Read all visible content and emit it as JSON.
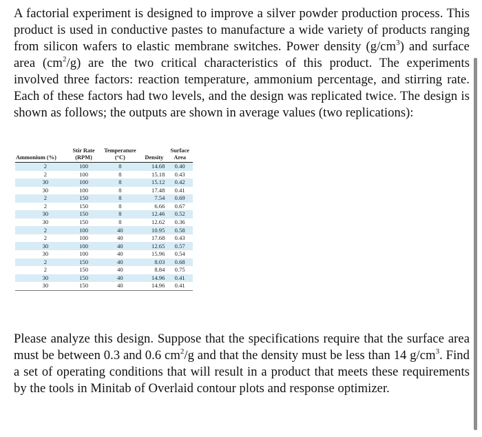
{
  "intro": {
    "before_cm3": "A factorial experiment is designed to improve a silver powder production process. This product is used in conductive pastes to manufacture a wide variety of products ranging from silicon wafers to elastic membrane switches. Power density (g/cm",
    "exp3": "3",
    "between": ") and surface area (cm",
    "exp2": "2",
    "after_cm2": "/g) are the two critical characteristics of this product. The experiments involved three factors: reaction temperature, ammonium percentage, and stirring rate. Each of these factors had two levels, and the design was replicated twice. The design is shown as follows; the outputs are shown in average values (two replications):"
  },
  "table": {
    "headers": {
      "ammonium": "Ammonium (%)",
      "stir_top": "Stir Rate",
      "stir_bottom": "(RPM)",
      "temp_top": "Temperature",
      "temp_bottom": "(°C)",
      "density": "Density",
      "surface_top": "Surface",
      "surface_bottom": "Area"
    },
    "rows": [
      {
        "ammonium": "2",
        "stir": "100",
        "temp": "8",
        "density": "14.68",
        "surface": "0.40"
      },
      {
        "ammonium": "2",
        "stir": "100",
        "temp": "8",
        "density": "15.18",
        "surface": "0.43"
      },
      {
        "ammonium": "30",
        "stir": "100",
        "temp": "8",
        "density": "15.12",
        "surface": "0.42"
      },
      {
        "ammonium": "30",
        "stir": "100",
        "temp": "8",
        "density": "17.48",
        "surface": "0.41"
      },
      {
        "ammonium": "2",
        "stir": "150",
        "temp": "8",
        "density": "7.54",
        "surface": "0.69"
      },
      {
        "ammonium": "2",
        "stir": "150",
        "temp": "8",
        "density": "6.66",
        "surface": "0.67"
      },
      {
        "ammonium": "30",
        "stir": "150",
        "temp": "8",
        "density": "12.46",
        "surface": "0.52"
      },
      {
        "ammonium": "30",
        "stir": "150",
        "temp": "8",
        "density": "12.62",
        "surface": "0.36"
      },
      {
        "ammonium": "2",
        "stir": "100",
        "temp": "40",
        "density": "10.95",
        "surface": "0.58"
      },
      {
        "ammonium": "2",
        "stir": "100",
        "temp": "40",
        "density": "17.68",
        "surface": "0.43"
      },
      {
        "ammonium": "30",
        "stir": "100",
        "temp": "40",
        "density": "12.65",
        "surface": "0.57"
      },
      {
        "ammonium": "30",
        "stir": "100",
        "temp": "40",
        "density": "15.96",
        "surface": "0.54"
      },
      {
        "ammonium": "2",
        "stir": "150",
        "temp": "40",
        "density": "8.03",
        "surface": "0.68"
      },
      {
        "ammonium": "2",
        "stir": "150",
        "temp": "40",
        "density": "8.84",
        "surface": "0.75"
      },
      {
        "ammonium": "30",
        "stir": "150",
        "temp": "40",
        "density": "14.96",
        "surface": "0.41"
      },
      {
        "ammonium": "30",
        "stir": "150",
        "temp": "40",
        "density": "14.96",
        "surface": "0.41"
      }
    ]
  },
  "outro": {
    "before_cm2": "Please analyze this design. Suppose that the specifications require that the surface area must be between 0.3 and 0.6 cm",
    "exp2": "2",
    "middle": "/g and that the density must be less than 14 g/cm",
    "exp3": "3",
    "after_cm3": ". Find a set of operating conditions that will result in a product that meets these requirements by the tools in Minitab of Overlaid contour plots and response optimizer."
  }
}
